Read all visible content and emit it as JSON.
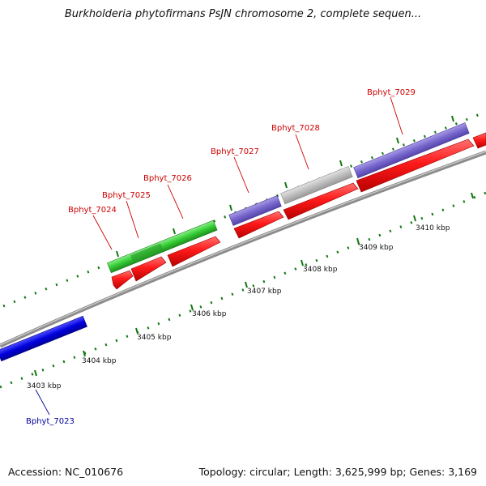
{
  "title": "Burkholderia phytofirmans PsJN chromosome 2, complete sequen...",
  "accession": "Accession: NC_010676",
  "topology": "Topology: circular; Length: 3,625,999 bp; Genes: 3,169",
  "scale_labels": [
    "3403 kbp",
    "3404 kbp",
    "3405 kbp",
    "3406 kbp",
    "3407 kbp",
    "3408 kbp",
    "3409 kbp",
    "3410 kbp"
  ],
  "genes": [
    {
      "name": "Bphyt_7023",
      "color": "#000099"
    },
    {
      "name": "Bphyt_7024",
      "color": "#cc0000"
    },
    {
      "name": "Bphyt_7025",
      "color": "#cc0000"
    },
    {
      "name": "Bphyt_7026",
      "color": "#cc0000"
    },
    {
      "name": "Bphyt_7027",
      "color": "#cc0000"
    },
    {
      "name": "Bphyt_7028",
      "color": "#cc0000"
    },
    {
      "name": "Bphyt_7029",
      "color": "#cc0000"
    }
  ],
  "colors": {
    "backbone": "#8c8c8c",
    "cds": "#ee1111",
    "green_feature": "#33cc33",
    "purple_feature": "#7766cc",
    "grey_feature": "#bbbbbb",
    "blue_feature": "#0000dd",
    "tick": "#117711"
  }
}
